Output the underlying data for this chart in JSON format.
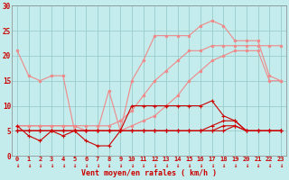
{
  "bg_color": "#c4ecec",
  "grid_color": "#98cccc",
  "xlabel": "Vent moyen/en rafales ( km/h )",
  "xlim": [
    -0.5,
    23.5
  ],
  "ylim": [
    0,
    30
  ],
  "yticks": [
    0,
    5,
    10,
    15,
    20,
    25,
    30
  ],
  "xticks": [
    0,
    1,
    2,
    3,
    4,
    5,
    6,
    7,
    8,
    9,
    10,
    11,
    12,
    13,
    14,
    15,
    16,
    17,
    18,
    19,
    20,
    21,
    22,
    23
  ],
  "line_salmon_1": [
    21,
    16,
    15,
    16,
    16,
    5,
    5,
    5,
    13,
    5,
    15,
    19,
    24,
    24,
    24,
    24,
    26,
    27,
    26,
    23,
    23,
    23,
    16,
    15
  ],
  "line_salmon_2": [
    6,
    6,
    6,
    6,
    6,
    6,
    6,
    6,
    6,
    7,
    9,
    12,
    15,
    17,
    19,
    21,
    21,
    22,
    22,
    22,
    22,
    22,
    22,
    22
  ],
  "line_salmon_3": [
    6,
    6,
    6,
    6,
    6,
    6,
    5,
    5,
    5,
    5,
    6,
    7,
    8,
    10,
    12,
    15,
    17,
    19,
    20,
    21,
    21,
    21,
    15,
    15
  ],
  "line_red_1": [
    6,
    4,
    3,
    5,
    4,
    5,
    3,
    2,
    2,
    5,
    10,
    10,
    10,
    10,
    10,
    10,
    10,
    11,
    8,
    7,
    5,
    5,
    5,
    5
  ],
  "line_red_2": [
    5,
    5,
    5,
    5,
    5,
    5,
    5,
    5,
    5,
    5,
    5,
    5,
    5,
    5,
    5,
    5,
    5,
    6,
    7,
    7,
    5,
    5,
    5,
    5
  ],
  "line_red_3": [
    5,
    5,
    5,
    5,
    5,
    5,
    5,
    5,
    5,
    5,
    5,
    5,
    5,
    5,
    5,
    5,
    5,
    5,
    6,
    6,
    5,
    5,
    5,
    5
  ],
  "line_red_4": [
    5,
    5,
    5,
    5,
    5,
    5,
    5,
    5,
    5,
    5,
    5,
    5,
    5,
    5,
    5,
    5,
    5,
    5,
    5,
    6,
    5,
    5,
    5,
    5
  ],
  "salmon_color": "#f08888",
  "red_color": "#cc0000",
  "marker_salmon": "o",
  "marker_red": "D",
  "ms_salmon": 2.0,
  "ms_red": 1.8,
  "lw_salmon": 0.8,
  "lw_red": 0.8,
  "tick_fontsize": 5.0,
  "xlabel_fontsize": 6.0,
  "arrow_symbol": "↓"
}
